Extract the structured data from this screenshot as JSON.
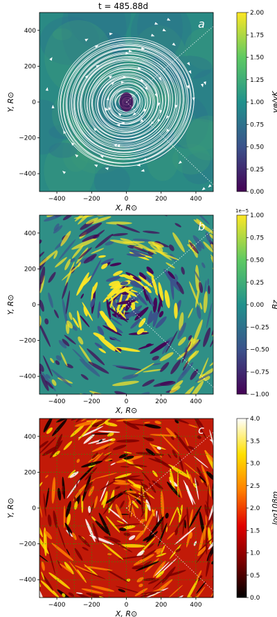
{
  "header": {
    "title": "t = 485.88d"
  },
  "chart_data": [
    {
      "type": "heatmap",
      "panel_label": "a",
      "xlabel": "X, R⊙",
      "ylabel": "Y, R⊙",
      "xlim": [
        -500,
        500
      ],
      "ylim": [
        -500,
        500
      ],
      "xticks": [
        "−400",
        "−200",
        "0",
        "200",
        "400"
      ],
      "yticks": [
        "400",
        "200",
        "0",
        "−200",
        "−400"
      ],
      "colorbar": {
        "label": "vφ/vK",
        "range": [
          0.0,
          2.0
        ],
        "ticks": [
          "2.00",
          "1.75",
          "1.50",
          "1.25",
          "1.00",
          "0.75",
          "0.50",
          "0.25",
          "0.00"
        ],
        "colormap": "viridis",
        "colors": [
          "#440154",
          "#3b528b",
          "#21918c",
          "#5ec962",
          "#fde725"
        ]
      },
      "overlay": "streamlines",
      "streamline_color": "#ffffff",
      "background_color": "#2a8a84"
    },
    {
      "type": "heatmap",
      "panel_label": "b",
      "xlabel": "X, R⊙",
      "ylabel": "Y, R⊙",
      "xlim": [
        -500,
        500
      ],
      "ylim": [
        -500,
        500
      ],
      "xticks": [
        "−400",
        "−200",
        "0",
        "200",
        "400"
      ],
      "yticks": [
        "400",
        "200",
        "0",
        "−200",
        "−400"
      ],
      "colorbar": {
        "label": "Bz",
        "range": [
          -1.0,
          1.0
        ],
        "scale_note": "1e−5",
        "ticks": [
          "1.00",
          "0.75",
          "0.50",
          "0.25",
          "0.00",
          "−0.25",
          "−0.50",
          "−0.75",
          "−1.00"
        ],
        "colormap": "viridis",
        "colors": [
          "#440154",
          "#3b528b",
          "#21918c",
          "#5ec962",
          "#fde725"
        ]
      },
      "background_color": "#2f8f86"
    },
    {
      "type": "heatmap",
      "panel_label": "c",
      "xlabel": "X, R⊙",
      "ylabel": "Y, R⊙",
      "xlim": [
        -500,
        500
      ],
      "ylim": [
        -500,
        500
      ],
      "xticks": [
        "−400",
        "−200",
        "0",
        "200",
        "400"
      ],
      "yticks": [
        "400",
        "200",
        "0",
        "−200",
        "−400"
      ],
      "colorbar": {
        "label": "log10βm",
        "range": [
          0.0,
          4.0
        ],
        "ticks": [
          "4.0",
          "3.5",
          "3.0",
          "2.5",
          "2.0",
          "1.5",
          "1.0",
          "0.5",
          "0.0"
        ],
        "colormap": "hot",
        "colors": [
          "#000000",
          "#7a0000",
          "#e00000",
          "#ff8000",
          "#ffe000",
          "#ffffff"
        ]
      },
      "grid": "dotted green",
      "background_color": "#c21a08"
    }
  ]
}
